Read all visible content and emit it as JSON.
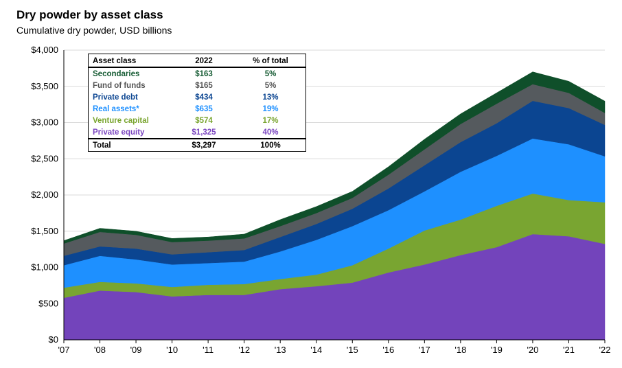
{
  "title": "Dry powder by asset class",
  "subtitle": "Cumulative dry powder, USD billions",
  "table": {
    "headers": [
      "Asset class",
      "2022",
      "% of total"
    ],
    "rows": [
      {
        "name": "Secondaries",
        "value": "$163",
        "pct": "5%",
        "color": "#145a32"
      },
      {
        "name": "Fund of funds",
        "value": "$165",
        "pct": "5%",
        "color": "#555555"
      },
      {
        "name": "Private debt",
        "value": "$434",
        "pct": "13%",
        "color": "#0b4591"
      },
      {
        "name": "Real assets*",
        "value": "$635",
        "pct": "19%",
        "color": "#1e90ff"
      },
      {
        "name": "Venture capital",
        "value": "$574",
        "pct": "17%",
        "color": "#7aa530"
      },
      {
        "name": "Private equity",
        "value": "$1,325",
        "pct": "40%",
        "color": "#7a45c0"
      }
    ],
    "total": {
      "name": "Total",
      "value": "$3,297",
      "pct": "100%"
    }
  },
  "chart_data": {
    "type": "area",
    "stacked": true,
    "title": "Dry powder by asset class",
    "subtitle": "Cumulative dry powder, USD billions",
    "x": [
      "'07",
      "'08",
      "'09",
      "'10",
      "'11",
      "'12",
      "'13",
      "'14",
      "'15",
      "'16",
      "'17",
      "'18",
      "'19",
      "'20",
      "'21",
      "'22"
    ],
    "ylim": [
      0,
      4000
    ],
    "yticks": [
      0,
      500,
      1000,
      1500,
      2000,
      2500,
      3000,
      3500,
      4000
    ],
    "ytick_labels": [
      "$0",
      "$500",
      "$1,000",
      "$1,500",
      "$2,000",
      "$2,500",
      "$3,000",
      "$3,500",
      "$4,000"
    ],
    "grid": true,
    "series": [
      {
        "name": "Private equity",
        "color": "#7344bb",
        "values": [
          580,
          680,
          660,
          600,
          620,
          620,
          700,
          740,
          790,
          930,
          1040,
          1170,
          1280,
          1460,
          1430,
          1325
        ]
      },
      {
        "name": "Venture capital",
        "color": "#79a531",
        "values": [
          140,
          120,
          120,
          130,
          140,
          150,
          140,
          160,
          240,
          330,
          470,
          490,
          570,
          560,
          500,
          574
        ]
      },
      {
        "name": "Real assets*",
        "color": "#1e90ff",
        "values": [
          310,
          360,
          330,
          310,
          300,
          310,
          380,
          480,
          540,
          530,
          540,
          660,
          690,
          760,
          770,
          635
        ]
      },
      {
        "name": "Private debt",
        "color": "#0b4591",
        "values": [
          130,
          130,
          150,
          140,
          150,
          160,
          200,
          220,
          240,
          300,
          360,
          410,
          450,
          520,
          500,
          434
        ]
      },
      {
        "name": "Fund of funds",
        "color": "#555a5e",
        "values": [
          170,
          200,
          190,
          170,
          160,
          160,
          150,
          150,
          150,
          190,
          220,
          250,
          270,
          230,
          210,
          165
        ]
      },
      {
        "name": "Secondaries",
        "color": "#0f4f2a",
        "values": [
          40,
          50,
          50,
          50,
          50,
          60,
          90,
          90,
          90,
          110,
          140,
          140,
          150,
          170,
          160,
          163
        ]
      }
    ]
  }
}
